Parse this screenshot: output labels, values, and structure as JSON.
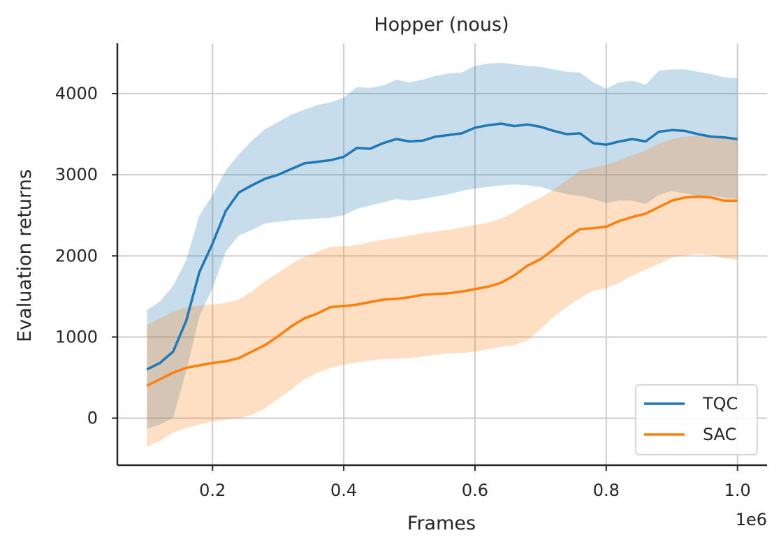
{
  "chart_data": {
    "type": "line",
    "title": "Hopper (nous)",
    "xlabel": "Frames",
    "ylabel": "Evaluation returns",
    "x_scale_label": "1e6",
    "xlim": [
      0.055,
      1.045
    ],
    "ylim": [
      -580,
      4620
    ],
    "xticks": [
      0.2,
      0.4,
      0.6,
      0.8,
      1.0
    ],
    "xtick_labels": [
      "0.2",
      "0.4",
      "0.6",
      "0.8",
      "1.0"
    ],
    "yticks": [
      0,
      1000,
      2000,
      3000,
      4000
    ],
    "ytick_labels": [
      "0",
      "1000",
      "2000",
      "3000",
      "4000"
    ],
    "grid": true,
    "legend_position": "lower-right",
    "x": [
      0.1,
      0.12,
      0.14,
      0.16,
      0.18,
      0.2,
      0.22,
      0.24,
      0.26,
      0.28,
      0.3,
      0.32,
      0.34,
      0.36,
      0.38,
      0.4,
      0.42,
      0.44,
      0.46,
      0.48,
      0.5,
      0.52,
      0.54,
      0.56,
      0.58,
      0.6,
      0.62,
      0.64,
      0.66,
      0.68,
      0.7,
      0.72,
      0.74,
      0.76,
      0.78,
      0.8,
      0.82,
      0.84,
      0.86,
      0.88,
      0.9,
      0.92,
      0.94,
      0.96,
      0.98,
      1.0
    ],
    "series": [
      {
        "name": "TQC",
        "color": "#1f77b4",
        "values": [
          600,
          680,
          820,
          1200,
          1800,
          2150,
          2550,
          2780,
          2870,
          2950,
          3000,
          3070,
          3140,
          3160,
          3180,
          3220,
          3330,
          3320,
          3390,
          3440,
          3410,
          3420,
          3470,
          3490,
          3510,
          3580,
          3610,
          3630,
          3600,
          3620,
          3590,
          3540,
          3500,
          3510,
          3390,
          3370,
          3410,
          3440,
          3410,
          3530,
          3550,
          3540,
          3500,
          3470,
          3460,
          3440
        ],
        "lower": [
          -130,
          -80,
          0,
          580,
          1250,
          1600,
          2050,
          2250,
          2320,
          2400,
          2420,
          2440,
          2450,
          2460,
          2470,
          2500,
          2580,
          2620,
          2660,
          2700,
          2680,
          2700,
          2730,
          2760,
          2800,
          2830,
          2850,
          2870,
          2880,
          2870,
          2850,
          2800,
          2760,
          2740,
          2700,
          2650,
          2680,
          2680,
          2640,
          2750,
          2800,
          2770,
          2740,
          2740,
          2720,
          2700
        ],
        "upper": [
          1330,
          1440,
          1630,
          1950,
          2500,
          2750,
          3050,
          3250,
          3420,
          3560,
          3650,
          3740,
          3800,
          3860,
          3890,
          3950,
          4080,
          4070,
          4100,
          4170,
          4140,
          4170,
          4220,
          4250,
          4260,
          4340,
          4370,
          4380,
          4360,
          4340,
          4330,
          4300,
          4270,
          4260,
          4140,
          4060,
          4140,
          4160,
          4110,
          4280,
          4300,
          4300,
          4270,
          4240,
          4200,
          4190
        ]
      },
      {
        "name": "SAC",
        "color": "#ff7f0e",
        "values": [
          400,
          480,
          560,
          620,
          650,
          680,
          700,
          740,
          820,
          900,
          1010,
          1130,
          1230,
          1290,
          1370,
          1380,
          1400,
          1430,
          1460,
          1470,
          1490,
          1520,
          1530,
          1540,
          1560,
          1590,
          1620,
          1670,
          1760,
          1880,
          1960,
          2080,
          2220,
          2330,
          2340,
          2360,
          2430,
          2480,
          2520,
          2600,
          2680,
          2720,
          2730,
          2720,
          2680,
          2680
        ],
        "lower": [
          -350,
          -280,
          -180,
          -120,
          -80,
          -40,
          -20,
          0,
          40,
          120,
          240,
          350,
          480,
          560,
          620,
          660,
          690,
          710,
          730,
          730,
          740,
          760,
          780,
          800,
          800,
          820,
          850,
          880,
          900,
          960,
          1100,
          1250,
          1370,
          1480,
          1570,
          1600,
          1670,
          1760,
          1830,
          1900,
          1980,
          2010,
          2020,
          2010,
          1970,
          1950
        ],
        "upper": [
          1150,
          1230,
          1310,
          1370,
          1390,
          1400,
          1420,
          1460,
          1560,
          1690,
          1790,
          1900,
          1990,
          2050,
          2110,
          2120,
          2130,
          2170,
          2200,
          2220,
          2250,
          2280,
          2300,
          2320,
          2350,
          2380,
          2410,
          2460,
          2540,
          2640,
          2720,
          2820,
          2930,
          3050,
          3090,
          3120,
          3180,
          3240,
          3300,
          3380,
          3440,
          3470,
          3480,
          3480,
          3450,
          3440
        ]
      }
    ]
  }
}
